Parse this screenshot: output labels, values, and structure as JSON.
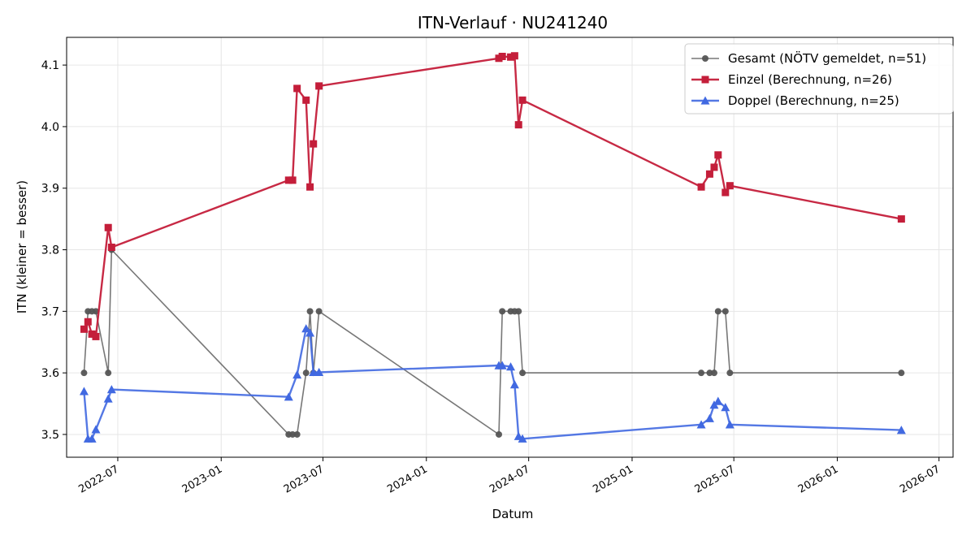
{
  "chart_data": {
    "type": "line",
    "title": "ITN-Verlauf · NU241240",
    "xlabel": "Datum",
    "ylabel": "ITN  (kleiner = besser)",
    "xlim": [
      "2022-04-01",
      "2026-07-26"
    ],
    "ylim": [
      3.463,
      4.145
    ],
    "grid": true,
    "legend_position": "top-right",
    "x_ticks": [
      {
        "date": "2022-07-01",
        "label": "2022-07"
      },
      {
        "date": "2023-01-01",
        "label": "2023-01"
      },
      {
        "date": "2023-07-01",
        "label": "2023-07"
      },
      {
        "date": "2024-01-01",
        "label": "2024-01"
      },
      {
        "date": "2024-07-01",
        "label": "2024-07"
      },
      {
        "date": "2025-01-01",
        "label": "2025-01"
      },
      {
        "date": "2025-07-01",
        "label": "2025-07"
      },
      {
        "date": "2026-01-01",
        "label": "2026-01"
      },
      {
        "date": "2026-07-01",
        "label": "2026-07"
      }
    ],
    "y_ticks": [
      {
        "value": 3.5,
        "label": "3.5"
      },
      {
        "value": 3.6,
        "label": "3.6"
      },
      {
        "value": 3.7,
        "label": "3.7"
      },
      {
        "value": 3.8,
        "label": "3.8"
      },
      {
        "value": 3.9,
        "label": "3.9"
      },
      {
        "value": 4.0,
        "label": "4.0"
      },
      {
        "value": 4.1,
        "label": "4.1"
      }
    ],
    "series": [
      {
        "name": "Gesamt (NÖTV gemeldet, n=51)",
        "color": "#555555",
        "marker": "circle",
        "points": [
          {
            "x": "2022-05-02",
            "y": 3.6
          },
          {
            "x": "2022-05-09",
            "y": 3.7
          },
          {
            "x": "2022-05-16",
            "y": 3.7
          },
          {
            "x": "2022-05-23",
            "y": 3.7
          },
          {
            "x": "2022-06-14",
            "y": 3.6
          },
          {
            "x": "2022-06-20",
            "y": 3.8
          },
          {
            "x": "2023-05-01",
            "y": 3.5
          },
          {
            "x": "2023-05-08",
            "y": 3.5
          },
          {
            "x": "2023-05-16",
            "y": 3.5
          },
          {
            "x": "2023-06-01",
            "y": 3.6
          },
          {
            "x": "2023-06-08",
            "y": 3.7
          },
          {
            "x": "2023-06-14",
            "y": 3.6
          },
          {
            "x": "2023-06-24",
            "y": 3.7
          },
          {
            "x": "2024-05-09",
            "y": 3.5
          },
          {
            "x": "2024-05-15",
            "y": 3.7
          },
          {
            "x": "2024-05-30",
            "y": 3.7
          },
          {
            "x": "2024-06-06",
            "y": 3.7
          },
          {
            "x": "2024-06-13",
            "y": 3.7
          },
          {
            "x": "2024-06-20",
            "y": 3.6
          },
          {
            "x": "2025-05-04",
            "y": 3.6
          },
          {
            "x": "2025-05-19",
            "y": 3.6
          },
          {
            "x": "2025-05-27",
            "y": 3.6
          },
          {
            "x": "2025-06-03",
            "y": 3.7
          },
          {
            "x": "2025-06-16",
            "y": 3.7
          },
          {
            "x": "2025-06-24",
            "y": 3.6
          },
          {
            "x": "2026-04-25",
            "y": 3.6
          }
        ]
      },
      {
        "name": "Einzel (Berechnung, n=26)",
        "color": "#c41e3a",
        "marker": "square",
        "points": [
          {
            "x": "2022-05-02",
            "y": 3.671
          },
          {
            "x": "2022-05-09",
            "y": 3.683
          },
          {
            "x": "2022-05-16",
            "y": 3.663
          },
          {
            "x": "2022-05-23",
            "y": 3.659
          },
          {
            "x": "2022-06-14",
            "y": 3.836
          },
          {
            "x": "2022-06-20",
            "y": 3.804
          },
          {
            "x": "2023-05-01",
            "y": 3.913
          },
          {
            "x": "2023-05-08",
            "y": 3.913
          },
          {
            "x": "2023-05-16",
            "y": 4.062
          },
          {
            "x": "2023-06-01",
            "y": 4.043
          },
          {
            "x": "2023-06-08",
            "y": 3.902
          },
          {
            "x": "2023-06-14",
            "y": 3.972
          },
          {
            "x": "2023-06-24",
            "y": 4.066
          },
          {
            "x": "2024-05-09",
            "y": 4.111
          },
          {
            "x": "2024-05-15",
            "y": 4.114
          },
          {
            "x": "2024-05-30",
            "y": 4.113
          },
          {
            "x": "2024-06-06",
            "y": 4.115
          },
          {
            "x": "2024-06-13",
            "y": 4.003
          },
          {
            "x": "2024-06-20",
            "y": 4.043
          },
          {
            "x": "2025-05-04",
            "y": 3.902
          },
          {
            "x": "2025-05-19",
            "y": 3.923
          },
          {
            "x": "2025-05-27",
            "y": 3.934
          },
          {
            "x": "2025-06-03",
            "y": 3.954
          },
          {
            "x": "2025-06-16",
            "y": 3.893
          },
          {
            "x": "2025-06-24",
            "y": 3.904
          },
          {
            "x": "2026-04-25",
            "y": 3.85
          }
        ]
      },
      {
        "name": "Doppel (Berechnung, n=25)",
        "color": "#4169e1",
        "marker": "triangle",
        "points": [
          {
            "x": "2022-05-02",
            "y": 3.57
          },
          {
            "x": "2022-05-09",
            "y": 3.493
          },
          {
            "x": "2022-05-16",
            "y": 3.493
          },
          {
            "x": "2022-05-23",
            "y": 3.508
          },
          {
            "x": "2022-06-14",
            "y": 3.558
          },
          {
            "x": "2022-06-20",
            "y": 3.573
          },
          {
            "x": "2023-05-01",
            "y": 3.561
          },
          {
            "x": "2023-05-16",
            "y": 3.597
          },
          {
            "x": "2023-06-01",
            "y": 3.672
          },
          {
            "x": "2023-06-08",
            "y": 3.665
          },
          {
            "x": "2023-06-14",
            "y": 3.601
          },
          {
            "x": "2023-06-24",
            "y": 3.601
          },
          {
            "x": "2024-05-09",
            "y": 3.612
          },
          {
            "x": "2024-05-15",
            "y": 3.612
          },
          {
            "x": "2024-05-30",
            "y": 3.61
          },
          {
            "x": "2024-06-06",
            "y": 3.581
          },
          {
            "x": "2024-06-13",
            "y": 3.497
          },
          {
            "x": "2024-06-20",
            "y": 3.493
          },
          {
            "x": "2025-05-04",
            "y": 3.516
          },
          {
            "x": "2025-05-19",
            "y": 3.526
          },
          {
            "x": "2025-05-27",
            "y": 3.548
          },
          {
            "x": "2025-06-03",
            "y": 3.554
          },
          {
            "x": "2025-06-16",
            "y": 3.544
          },
          {
            "x": "2025-06-24",
            "y": 3.516
          },
          {
            "x": "2026-04-25",
            "y": 3.507
          }
        ]
      }
    ]
  }
}
